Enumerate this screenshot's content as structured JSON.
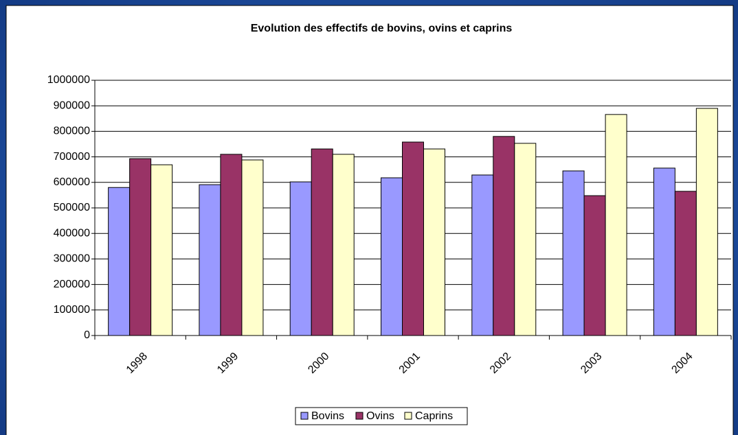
{
  "chart_data": {
    "type": "bar",
    "title": "Evolution des effectifs de bovins, ovins et caprins",
    "categories": [
      "1998",
      "1999",
      "2000",
      "2001",
      "2002",
      "2003",
      "2004"
    ],
    "series": [
      {
        "name": "Bovins",
        "color": "#9999ff",
        "values": [
          580000,
          591000,
          602000,
          618000,
          629000,
          645000,
          656000
        ]
      },
      {
        "name": "Ovins",
        "color": "#993366",
        "values": [
          693000,
          710000,
          731000,
          758000,
          780000,
          548000,
          565000
        ]
      },
      {
        "name": "Caprins",
        "color": "#ffffcc",
        "values": [
          669000,
          688000,
          710000,
          731000,
          753000,
          866000,
          890000
        ]
      }
    ],
    "ylim": [
      0,
      1000000
    ],
    "yticks": [
      0,
      100000,
      200000,
      300000,
      400000,
      500000,
      600000,
      700000,
      800000,
      900000,
      1000000
    ],
    "grid": true,
    "legend": "bottom"
  }
}
